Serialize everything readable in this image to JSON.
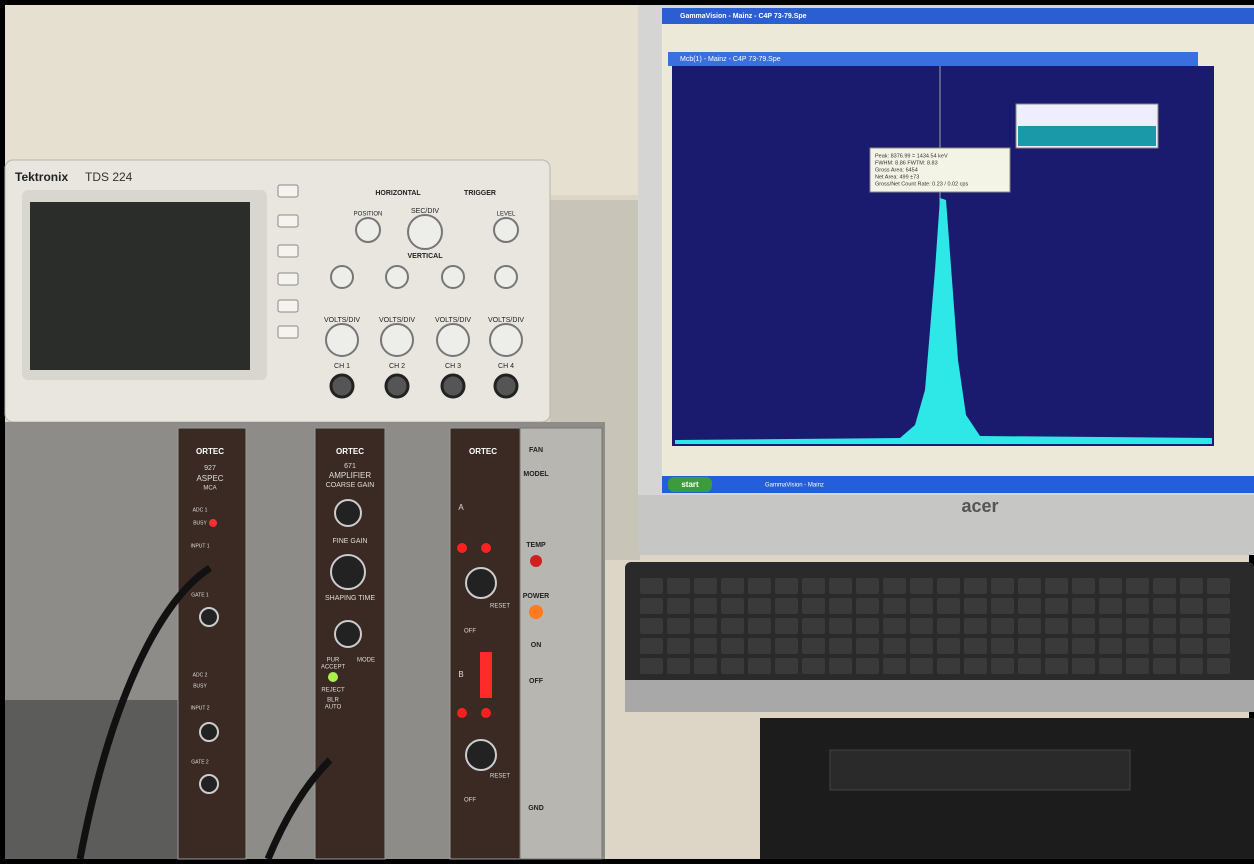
{
  "oscilloscope": {
    "brand": "Tektronix",
    "model": "TDS 224",
    "sections": [
      "HORIZONTAL",
      "TRIGGER",
      "VERTICAL"
    ],
    "knobs": [
      "SEC/DIV",
      "POSITION",
      "LEVEL"
    ],
    "channels": [
      {
        "label": "CH 1",
        "scale": "VOLTS/DIV"
      },
      {
        "label": "CH 2",
        "scale": "VOLTS/DIV"
      },
      {
        "label": "CH 3",
        "scale": "VOLTS/DIV"
      },
      {
        "label": "CH 4",
        "scale": "VOLTS/DIV"
      }
    ]
  },
  "mca": {
    "brand": "ORTEC",
    "model": "927",
    "name": "ASPEC",
    "kind": "MCA",
    "labels": [
      "ADC 1",
      "BUSY",
      "INPUT 1",
      "GATE 1",
      "ADC 2",
      "BUSY",
      "INPUT 2",
      "GATE 2"
    ]
  },
  "amplifier": {
    "brand": "ORTEC",
    "model": "671",
    "name": "AMPLIFIER",
    "labels": [
      "COARSE GAIN",
      "FINE GAIN",
      "SHAPING TIME",
      "PUR",
      "ACCEPT",
      "REJECT",
      "MODE",
      "BLR",
      "AUTO"
    ]
  },
  "high_voltage": {
    "brand": "ORTEC",
    "labels": [
      "A",
      "RESET",
      "OFF",
      "B",
      "RESET",
      "OFF"
    ]
  },
  "bin": {
    "labels": [
      "FAN",
      "MODEL",
      "TEMP",
      "POWER",
      "ON",
      "OFF",
      "GND"
    ]
  },
  "screen": {
    "app_title": "GammaVision - Mainz - C4P 73-79.Spe",
    "window_title": "Mcb(1) - Mainz - C4P 73-79.Spe",
    "peak_info": [
      "Peak: 8376.99 = 1434.54 keV",
      "FWHM: 8.86  FWTM: 8.83",
      "Gross Area: 6454",
      "Net Area: 499 ±73",
      "Gross/Net Count Rate: 0.23 / 0.02 cps"
    ],
    "start": "start",
    "taskbar_item": "GammaVision - Mainz"
  },
  "monitor": {
    "brand": "acer"
  }
}
